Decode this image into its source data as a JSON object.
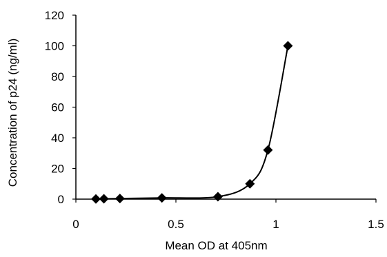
{
  "chart_data": {
    "type": "scatter",
    "xlabel": "Mean OD at 405nm",
    "ylabel": "Concentration of p24  (ng/ml)",
    "xlim": [
      0,
      1.5
    ],
    "ylim": [
      0,
      120
    ],
    "x_ticks": [
      0,
      0.5,
      1,
      1.5
    ],
    "y_ticks": [
      0,
      20,
      40,
      60,
      80,
      100,
      120
    ],
    "x_tick_labels": [
      "0",
      "0.5",
      "1",
      "1.5"
    ],
    "y_tick_labels": [
      "0",
      "20",
      "40",
      "60",
      "80",
      "100",
      "120"
    ],
    "grid": false,
    "marker": "diamond",
    "smoothed_line": true,
    "series": [
      {
        "x": [
          0.1,
          0.14,
          0.22,
          0.43,
          0.71,
          0.87,
          0.96,
          1.06
        ],
        "y": [
          0.1,
          0.2,
          0.4,
          0.8,
          1.6,
          10,
          32,
          100
        ]
      }
    ],
    "colors": {
      "marker": "#000000",
      "line": "#000000",
      "axes": "#000000"
    }
  }
}
